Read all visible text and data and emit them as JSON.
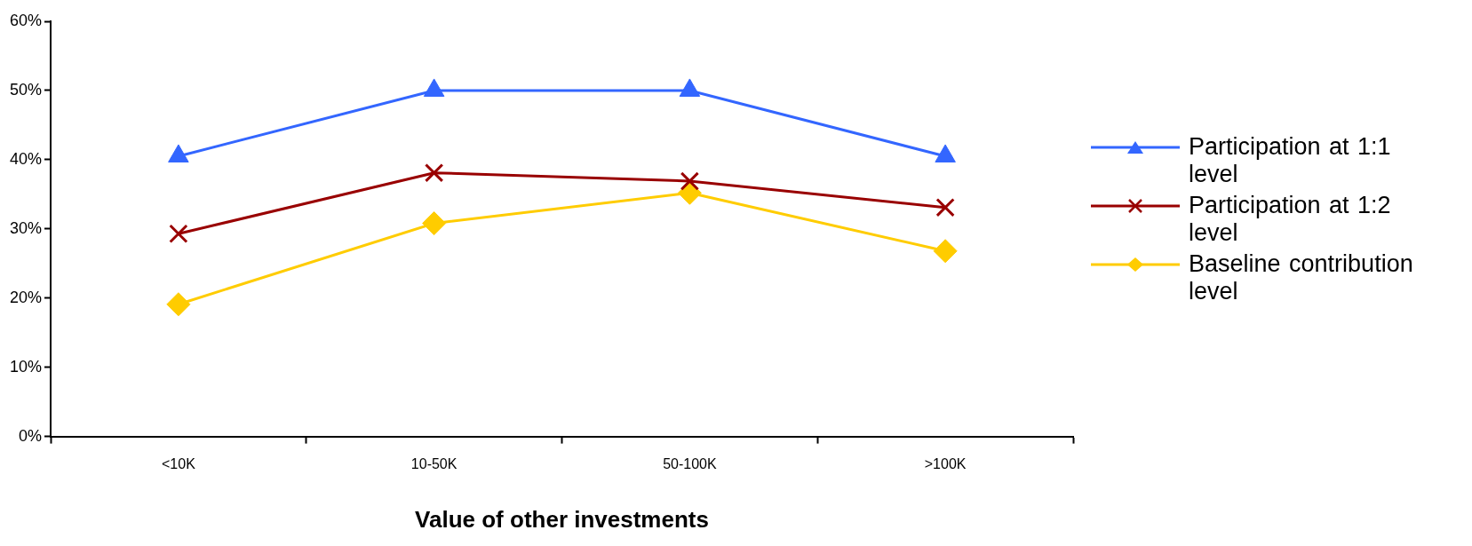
{
  "chart_data": {
    "type": "line",
    "xlabel": "Value of other investments",
    "categories": [
      "<10K",
      "10-50K",
      "50-100K",
      ">100K"
    ],
    "ylim": [
      0,
      60
    ],
    "yticks": [
      {
        "value": 0,
        "label": "0%"
      },
      {
        "value": 10,
        "label": "10%"
      },
      {
        "value": 20,
        "label": "20%"
      },
      {
        "value": 30,
        "label": "30%"
      },
      {
        "value": 40,
        "label": "40%"
      },
      {
        "value": 50,
        "label": "50%"
      },
      {
        "value": 60,
        "label": "60%"
      }
    ],
    "grid": false,
    "legend": "right",
    "line_style": "solid",
    "series": [
      {
        "name": "Participation at 1:1 level",
        "color": "#3366ff",
        "marker": "triangle",
        "values": [
          40.5,
          50,
          50,
          40.5
        ]
      },
      {
        "name": "Participation at 1:2 level",
        "color": "#990000",
        "marker": "cross",
        "values": [
          29.3,
          38.1,
          36.9,
          33.1
        ]
      },
      {
        "name": "Baseline contribution level",
        "color": "#ffcc00",
        "marker": "diamond",
        "values": [
          19.1,
          30.8,
          35.2,
          26.8
        ]
      }
    ]
  }
}
